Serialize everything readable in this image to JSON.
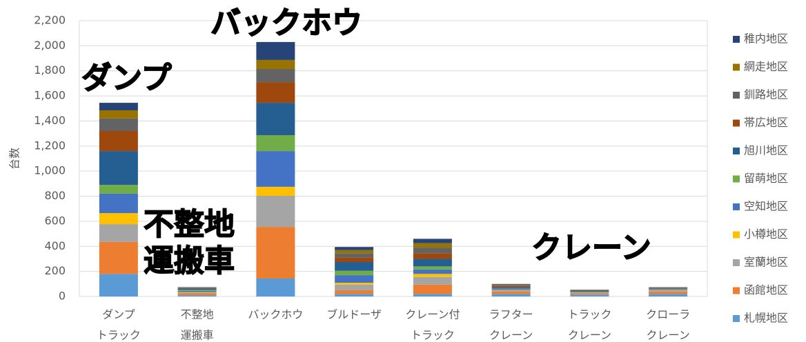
{
  "chart_data": {
    "type": "stacked_bar",
    "y_label": "台数",
    "categories": [
      [
        "ダンプ",
        "トラック"
      ],
      [
        "不整地",
        "運搬車"
      ],
      [
        "バックホウ"
      ],
      [
        "ブルドーザ"
      ],
      [
        "クレーン付",
        "トラック"
      ],
      [
        "ラフター",
        "クレーン"
      ],
      [
        "トラック",
        "クレーン"
      ],
      [
        "クローラ",
        "クレーン"
      ]
    ],
    "ylim": [
      0,
      2200
    ],
    "yticks": [
      0,
      200,
      400,
      600,
      800,
      {
        "value": 1000,
        "label": "1,000"
      },
      {
        "value": 1200,
        "label": "1,200"
      },
      {
        "value": 1400,
        "label": "1,400"
      },
      {
        "value": 1600,
        "label": "1,600"
      },
      {
        "value": 1800,
        "label": "1,800"
      },
      {
        "value": 2000,
        "label": "2,000"
      },
      {
        "value": 2200,
        "label": "2,200"
      }
    ],
    "grid": true,
    "legend": "right",
    "series": [
      {
        "name": "札幌地区",
        "color": "#5b9bd5",
        "values": [
          180,
          10,
          143,
          20,
          20,
          20,
          15,
          20
        ]
      },
      {
        "name": "函館地区",
        "color": "#ed7d31",
        "values": [
          255,
          15,
          412,
          30,
          75,
          20,
          10,
          20
        ]
      },
      {
        "name": "室蘭地区",
        "color": "#a5a5a5",
        "values": [
          142,
          5,
          248,
          45,
          60,
          10,
          5,
          8
        ]
      },
      {
        "name": "小樽地区",
        "color": "#ffc000",
        "values": [
          88,
          5,
          72,
          15,
          25,
          3,
          2,
          3
        ]
      },
      {
        "name": "空知地区",
        "color": "#4472c4",
        "values": [
          155,
          10,
          285,
          60,
          35,
          10,
          5,
          6
        ]
      },
      {
        "name": "留萌地区",
        "color": "#70ad47",
        "values": [
          70,
          8,
          127,
          35,
          25,
          2,
          2,
          2
        ]
      },
      {
        "name": "旭川地区",
        "color": "#255e91",
        "values": [
          270,
          10,
          258,
          70,
          60,
          8,
          5,
          5
        ]
      },
      {
        "name": "帯広地区",
        "color": "#9e480e",
        "values": [
          160,
          4,
          165,
          35,
          45,
          10,
          4,
          4
        ]
      },
      {
        "name": "釧路地区",
        "color": "#636363",
        "values": [
          100,
          3,
          105,
          35,
          45,
          7,
          3,
          3
        ]
      },
      {
        "name": "網走地区",
        "color": "#997300",
        "values": [
          65,
          2,
          72,
          25,
          35,
          5,
          2,
          2
        ]
      },
      {
        "name": "稚内地区",
        "color": "#264478",
        "values": [
          60,
          3,
          143,
          25,
          35,
          5,
          2,
          2
        ]
      }
    ],
    "annotations": [
      [
        "ダンプ"
      ],
      [
        "バックホウ"
      ],
      [
        "不整地",
        "運搬車"
      ],
      [
        "クレーン"
      ]
    ]
  }
}
